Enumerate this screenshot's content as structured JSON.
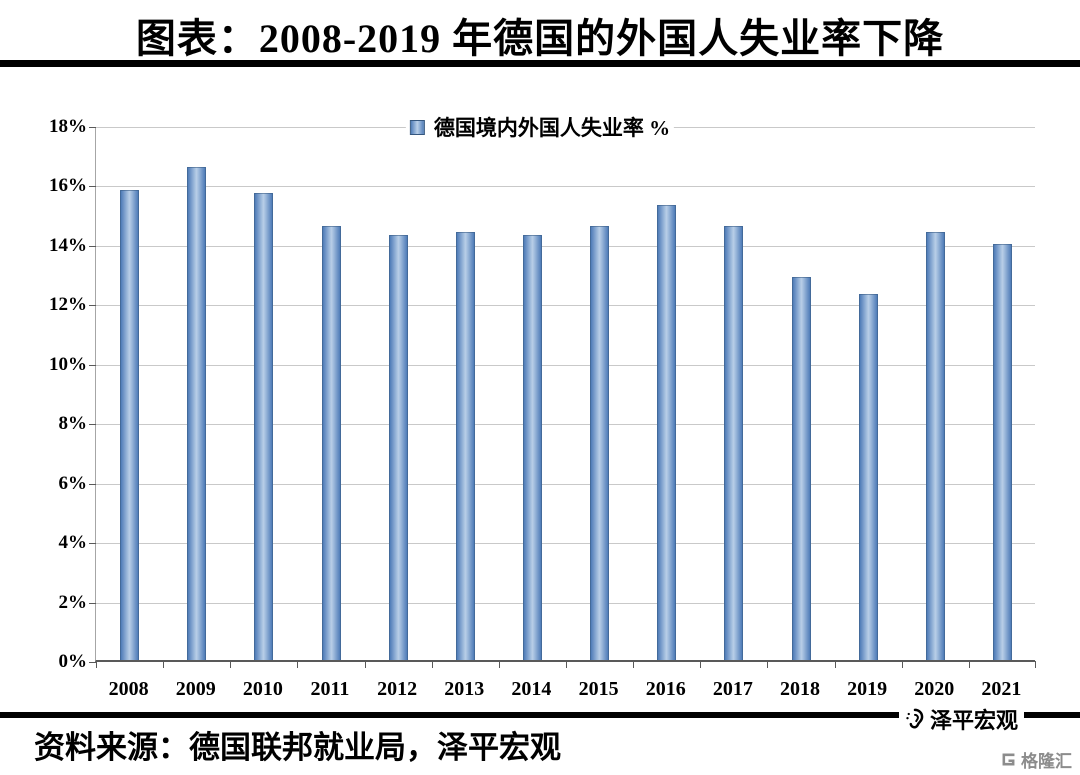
{
  "header": {
    "title": "图表：2008-2019 年德国的外国人失业率下降"
  },
  "chart_data": {
    "type": "bar",
    "title": "图表：2008-2019 年德国的外国人失业率下降",
    "legend": "德国境内外国人失业率 %",
    "legend_position": "top-center",
    "categories": [
      "2008",
      "2009",
      "2010",
      "2011",
      "2012",
      "2013",
      "2014",
      "2015",
      "2016",
      "2017",
      "2018",
      "2019",
      "2020",
      "2021"
    ],
    "values": [
      15.8,
      16.6,
      15.7,
      14.6,
      14.3,
      14.4,
      14.3,
      14.6,
      15.3,
      14.6,
      12.9,
      12.3,
      14.4,
      14.0
    ],
    "xlabel": "",
    "ylabel": "",
    "ylim": [
      0,
      18
    ],
    "ytick_step": 2,
    "yticks": [
      "0%",
      "2%",
      "4%",
      "6%",
      "8%",
      "10%",
      "12%",
      "14%",
      "16%",
      "18%"
    ],
    "grid": true,
    "bar_colors": {
      "edge": "#4f7cb8",
      "center": "#b9cfe8"
    }
  },
  "footer": {
    "source": "资料来源：德国联邦就业局，泽平宏观",
    "brand_zeping": "泽平宏观",
    "brand_gelonghui": "格隆汇"
  }
}
